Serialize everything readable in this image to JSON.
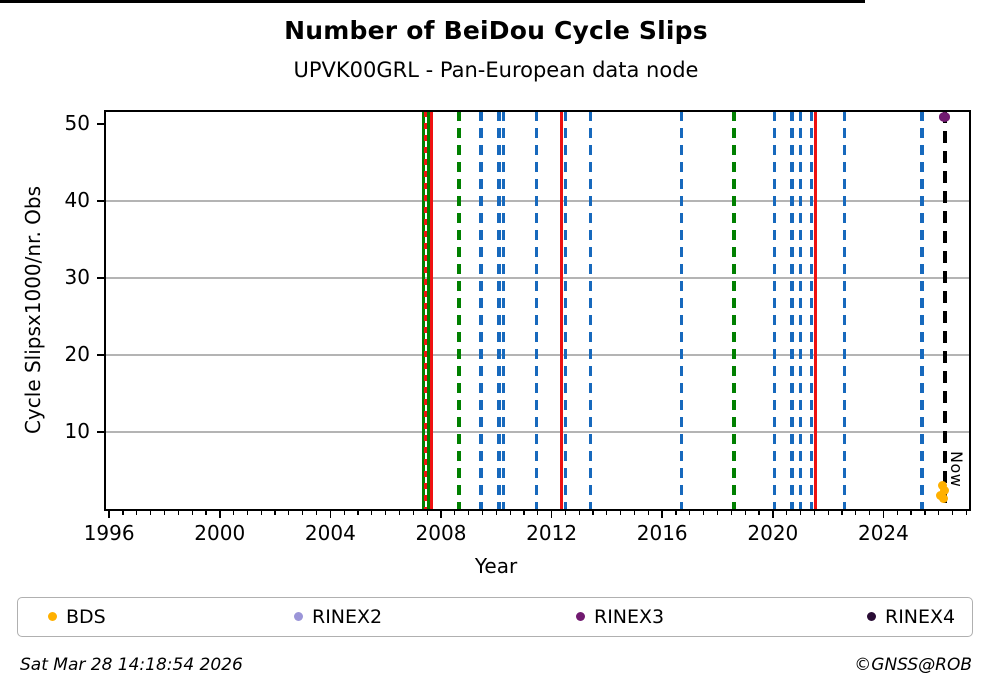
{
  "footer": {
    "timestamp": "Sat Mar 28 14:18:54 2026",
    "credit": "©GNSS@ROB"
  },
  "legend": [
    {
      "label": "BDS",
      "color": "#ffb000"
    },
    {
      "label": "RINEX2",
      "color": "#9b95d8"
    },
    {
      "label": "RINEX3",
      "color": "#711a70"
    },
    {
      "label": "RINEX4",
      "color": "#2a0d35"
    }
  ],
  "chart_data": {
    "type": "scatter",
    "title": "Number of BeiDou Cycle Slips",
    "subtitle": "UPVK00GRL - Pan-European data node",
    "xlabel": "Year",
    "ylabel": "Cycle Slipsx1000/nr. Obs",
    "xlim": [
      1995.85,
      2027.13
    ],
    "ylim": [
      0,
      51.7
    ],
    "xticks": [
      1996,
      2000,
      2004,
      2008,
      2012,
      2016,
      2020,
      2024
    ],
    "yticks": [
      10,
      20,
      30,
      40,
      50
    ],
    "grid": "horizontal grey gridlines at 10-40, black cap line at 50",
    "legend_position": "bottom",
    "cap_line": 50,
    "now": {
      "label": "Now",
      "year": 2026.22,
      "style": "dashed",
      "color": "#000000"
    },
    "event_lines": [
      {
        "year": 2007.35,
        "color": "green",
        "style": "solid"
      },
      {
        "year": 2007.45,
        "color": "red",
        "style": "dashed"
      },
      {
        "year": 2007.55,
        "color": "green",
        "style": "solid"
      },
      {
        "year": 2007.65,
        "color": "red",
        "style": "solid"
      },
      {
        "year": 2008.65,
        "color": "green",
        "style": "dashed"
      },
      {
        "year": 2009.45,
        "color": "blue",
        "style": "dashed"
      },
      {
        "year": 2010.1,
        "color": "blue",
        "style": "dashed"
      },
      {
        "year": 2010.27,
        "color": "blue",
        "style": "dashed"
      },
      {
        "year": 2011.45,
        "color": "blue",
        "style": "dashed"
      },
      {
        "year": 2012.35,
        "color": "red",
        "style": "solid"
      },
      {
        "year": 2012.5,
        "color": "blue",
        "style": "dashed"
      },
      {
        "year": 2013.4,
        "color": "blue",
        "style": "dashed"
      },
      {
        "year": 2016.7,
        "color": "blue",
        "style": "dashed"
      },
      {
        "year": 2018.6,
        "color": "green",
        "style": "dashed"
      },
      {
        "year": 2020.05,
        "color": "blue",
        "style": "dashed"
      },
      {
        "year": 2020.7,
        "color": "blue",
        "style": "dashed"
      },
      {
        "year": 2021.0,
        "color": "blue",
        "style": "dashed"
      },
      {
        "year": 2021.4,
        "color": "blue",
        "style": "dashed"
      },
      {
        "year": 2021.55,
        "color": "red",
        "style": "solid"
      },
      {
        "year": 2022.6,
        "color": "blue",
        "style": "dashed"
      },
      {
        "year": 2025.4,
        "color": "blue",
        "style": "dashed"
      }
    ],
    "points": [
      {
        "series": "RINEX3",
        "year": 2026.22,
        "value": 50.9
      },
      {
        "series": "BDS",
        "year": 2026.12,
        "value": 3.1
      },
      {
        "series": "BDS",
        "year": 2026.2,
        "value": 2.4
      },
      {
        "series": "BDS",
        "year": 2026.08,
        "value": 1.8
      },
      {
        "series": "BDS",
        "year": 2026.16,
        "value": 1.3
      }
    ],
    "colors": {
      "green": "#008000",
      "red": "#ee1111",
      "blue": "#1769bd",
      "black": "#000000"
    }
  }
}
